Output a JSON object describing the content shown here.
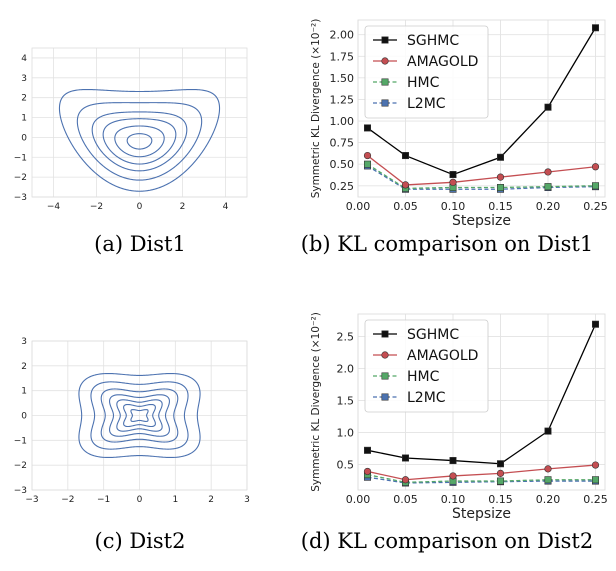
{
  "captions": {
    "a": "(a) Dist1",
    "b": "(b) KL comparison on Dist1",
    "c": "(c) Dist2",
    "d": "(d) KL comparison on Dist2"
  },
  "chart_data": [
    {
      "id": "a",
      "type": "contour",
      "x_ticks": [
        "−4",
        "−2",
        "0",
        "2",
        "4"
      ],
      "y_ticks": [
        "4",
        "3",
        "2",
        "1",
        "0",
        "−1",
        "−2",
        "−3"
      ],
      "xlim": [
        -5,
        5
      ],
      "ylim": [
        -3,
        4.5
      ],
      "grid": true,
      "contour_color": "#4c72b0"
    },
    {
      "id": "b",
      "type": "line",
      "x": [
        0.01,
        0.05,
        0.1,
        0.15,
        0.2,
        0.25
      ],
      "x_ticks": [
        "0.00",
        "0.05",
        "0.10",
        "0.15",
        "0.20",
        "0.25"
      ],
      "y_ticks": [
        "0.25",
        "0.50",
        "0.75",
        "1.00",
        "1.25",
        "1.50",
        "1.75",
        "2.00"
      ],
      "xlabel": "Stepsize",
      "ylabel": "Symmetric KL Divergence (×10⁻²)",
      "xlim": [
        0.0,
        0.26
      ],
      "ylim": [
        0.12,
        2.17
      ],
      "legend": "top-left",
      "grid": true,
      "series": [
        {
          "name": "SGHMC",
          "values": [
            0.92,
            0.6,
            0.38,
            0.58,
            1.16,
            2.08
          ],
          "color": "#000000",
          "marker": "square",
          "dash": false
        },
        {
          "name": "AMAGOLD",
          "values": [
            0.6,
            0.26,
            0.29,
            0.35,
            0.41,
            0.47
          ],
          "color": "#c44e52",
          "marker": "circle",
          "dash": false
        },
        {
          "name": "HMC",
          "values": [
            0.5,
            0.22,
            0.23,
            0.23,
            0.24,
            0.25
          ],
          "color": "#55a868",
          "marker": "square",
          "dash": true
        },
        {
          "name": "L2MC",
          "values": [
            0.48,
            0.21,
            0.21,
            0.21,
            0.23,
            0.24
          ],
          "color": "#4c72b0",
          "marker": "square",
          "dash": true
        }
      ]
    },
    {
      "id": "c",
      "type": "contour",
      "x_ticks": [
        "−3",
        "−2",
        "−1",
        "0",
        "1",
        "2",
        "3"
      ],
      "y_ticks": [
        "3",
        "2",
        "1",
        "0",
        "−1",
        "−2",
        "−3"
      ],
      "xlim": [
        -3,
        3
      ],
      "ylim": [
        -3,
        3
      ],
      "grid": true,
      "contour_color": "#4c72b0"
    },
    {
      "id": "d",
      "type": "line",
      "x": [
        0.01,
        0.05,
        0.1,
        0.15,
        0.2,
        0.25
      ],
      "x_ticks": [
        "0.00",
        "0.05",
        "0.10",
        "0.15",
        "0.20",
        "0.25"
      ],
      "y_ticks": [
        "0.5",
        "1.0",
        "1.5",
        "2.0",
        "2.5"
      ],
      "xlabel": "Stepsize",
      "ylabel": "Symmetric KL Divergence (×10⁻²)",
      "xlim": [
        0.0,
        0.26
      ],
      "ylim": [
        0.1,
        2.85
      ],
      "legend": "top-left",
      "grid": true,
      "series": [
        {
          "name": "SGHMC",
          "values": [
            0.72,
            0.6,
            0.56,
            0.51,
            1.02,
            2.69
          ],
          "color": "#000000",
          "marker": "square",
          "dash": false
        },
        {
          "name": "AMAGOLD",
          "values": [
            0.39,
            0.26,
            0.32,
            0.36,
            0.43,
            0.49
          ],
          "color": "#c44e52",
          "marker": "circle",
          "dash": false
        },
        {
          "name": "HMC",
          "values": [
            0.34,
            0.22,
            0.24,
            0.24,
            0.26,
            0.26
          ],
          "color": "#55a868",
          "marker": "square",
          "dash": true
        },
        {
          "name": "L2MC",
          "values": [
            0.3,
            0.21,
            0.22,
            0.23,
            0.24,
            0.24
          ],
          "color": "#4c72b0",
          "marker": "square",
          "dash": true
        }
      ]
    }
  ]
}
